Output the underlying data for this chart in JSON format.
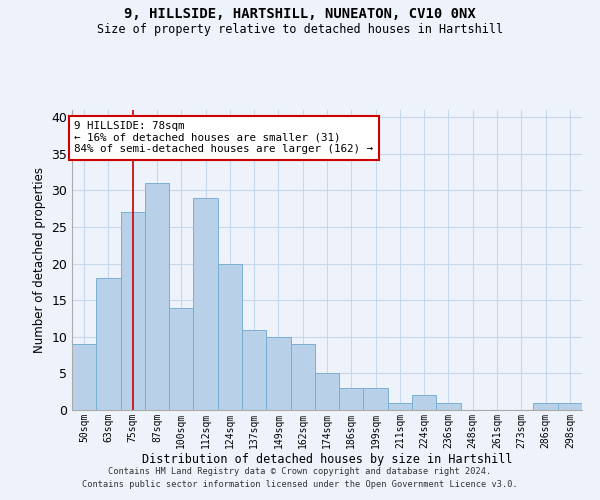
{
  "title1": "9, HILLSIDE, HARTSHILL, NUNEATON, CV10 0NX",
  "title2": "Size of property relative to detached houses in Hartshill",
  "xlabel": "Distribution of detached houses by size in Hartshill",
  "ylabel": "Number of detached properties",
  "footnote1": "Contains HM Land Registry data © Crown copyright and database right 2024.",
  "footnote2": "Contains public sector information licensed under the Open Government Licence v3.0.",
  "categories": [
    "50sqm",
    "63sqm",
    "75sqm",
    "87sqm",
    "100sqm",
    "112sqm",
    "124sqm",
    "137sqm",
    "149sqm",
    "162sqm",
    "174sqm",
    "186sqm",
    "199sqm",
    "211sqm",
    "224sqm",
    "236sqm",
    "248sqm",
    "261sqm",
    "273sqm",
    "286sqm",
    "298sqm"
  ],
  "values": [
    9,
    18,
    27,
    31,
    14,
    29,
    20,
    11,
    10,
    9,
    5,
    3,
    3,
    1,
    2,
    1,
    0,
    0,
    0,
    1,
    1
  ],
  "bar_color": "#b8d0e8",
  "bar_edge_color": "#7aafd4",
  "grid_color": "#c8d8ec",
  "bg_color": "#eef2fa",
  "red_line_x": 2.0,
  "annotation_title": "9 HILLSIDE: 78sqm",
  "annotation_line1": "← 16% of detached houses are smaller (31)",
  "annotation_line2": "84% of semi-detached houses are larger (162) →",
  "annotation_box_color": "#ffffff",
  "annotation_border_color": "#cc0000",
  "ylim": [
    0,
    41
  ],
  "yticks": [
    0,
    5,
    10,
    15,
    20,
    25,
    30,
    35,
    40
  ]
}
